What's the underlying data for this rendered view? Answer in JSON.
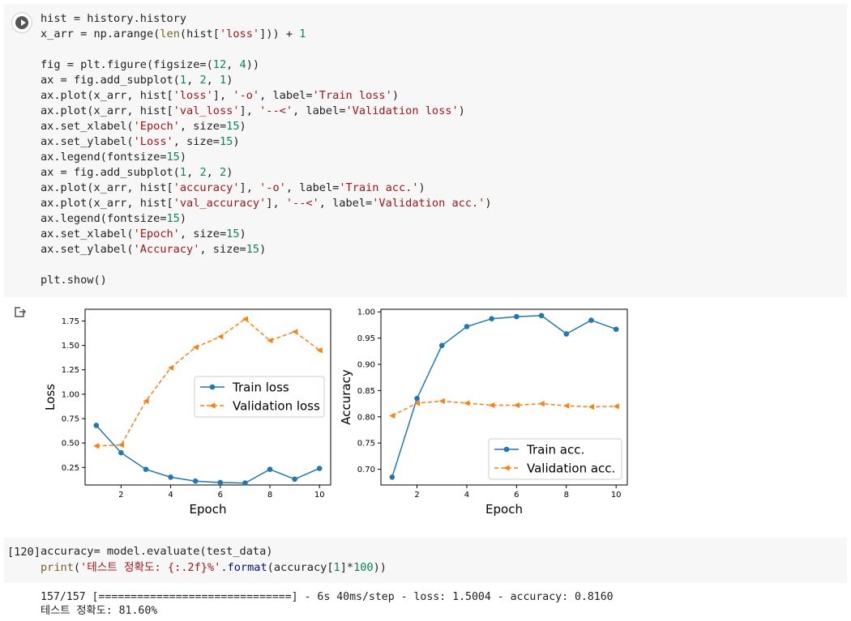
{
  "cell1": {
    "code_lines": [
      [
        {
          "t": "hist = history.history"
        }
      ],
      [
        {
          "t": "x_arr = np.arange("
        },
        {
          "t": "len",
          "c": "blt"
        },
        {
          "t": "(hist["
        },
        {
          "t": "'loss'",
          "c": "str"
        },
        {
          "t": "])) + "
        },
        {
          "t": "1",
          "c": "num"
        }
      ],
      [],
      [
        {
          "t": "fig = plt.figure(figsize=("
        },
        {
          "t": "12",
          "c": "num"
        },
        {
          "t": ", "
        },
        {
          "t": "4",
          "c": "num"
        },
        {
          "t": "))"
        }
      ],
      [
        {
          "t": "ax = fig.add_subplot("
        },
        {
          "t": "1",
          "c": "num"
        },
        {
          "t": ", "
        },
        {
          "t": "2",
          "c": "num"
        },
        {
          "t": ", "
        },
        {
          "t": "1",
          "c": "num"
        },
        {
          "t": ")"
        }
      ],
      [
        {
          "t": "ax.plot(x_arr, hist["
        },
        {
          "t": "'loss'",
          "c": "str"
        },
        {
          "t": "], "
        },
        {
          "t": "'-o'",
          "c": "str"
        },
        {
          "t": ", label="
        },
        {
          "t": "'Train loss'",
          "c": "str"
        },
        {
          "t": ")"
        }
      ],
      [
        {
          "t": "ax.plot(x_arr, hist["
        },
        {
          "t": "'val_loss'",
          "c": "str"
        },
        {
          "t": "], "
        },
        {
          "t": "'--<'",
          "c": "str"
        },
        {
          "t": ", label="
        },
        {
          "t": "'Validation loss'",
          "c": "str"
        },
        {
          "t": ")"
        }
      ],
      [
        {
          "t": "ax.set_xlabel("
        },
        {
          "t": "'Epoch'",
          "c": "str"
        },
        {
          "t": ", size="
        },
        {
          "t": "15",
          "c": "num"
        },
        {
          "t": ")"
        }
      ],
      [
        {
          "t": "ax.set_ylabel("
        },
        {
          "t": "'Loss'",
          "c": "str"
        },
        {
          "t": ", size="
        },
        {
          "t": "15",
          "c": "num"
        },
        {
          "t": ")"
        }
      ],
      [
        {
          "t": "ax.legend(fontsize="
        },
        {
          "t": "15",
          "c": "num"
        },
        {
          "t": ")"
        }
      ],
      [
        {
          "t": "ax = fig.add_subplot("
        },
        {
          "t": "1",
          "c": "num"
        },
        {
          "t": ", "
        },
        {
          "t": "2",
          "c": "num"
        },
        {
          "t": ", "
        },
        {
          "t": "2",
          "c": "num"
        },
        {
          "t": ")"
        }
      ],
      [
        {
          "t": "ax.plot(x_arr, hist["
        },
        {
          "t": "'accuracy'",
          "c": "str"
        },
        {
          "t": "], "
        },
        {
          "t": "'-o'",
          "c": "str"
        },
        {
          "t": ", label="
        },
        {
          "t": "'Train acc.'",
          "c": "str"
        },
        {
          "t": ")"
        }
      ],
      [
        {
          "t": "ax.plot(x_arr, hist["
        },
        {
          "t": "'val_accuracy'",
          "c": "str"
        },
        {
          "t": "], "
        },
        {
          "t": "'--<'",
          "c": "str"
        },
        {
          "t": ", label="
        },
        {
          "t": "'Validation acc.'",
          "c": "str"
        },
        {
          "t": ")"
        }
      ],
      [
        {
          "t": "ax.legend(fontsize="
        },
        {
          "t": "15",
          "c": "num"
        },
        {
          "t": ")"
        }
      ],
      [
        {
          "t": "ax.set_xlabel("
        },
        {
          "t": "'Epoch'",
          "c": "str"
        },
        {
          "t": ", size="
        },
        {
          "t": "15",
          "c": "num"
        },
        {
          "t": ")"
        }
      ],
      [
        {
          "t": "ax.set_ylabel("
        },
        {
          "t": "'Accuracy'",
          "c": "str"
        },
        {
          "t": ", size="
        },
        {
          "t": "15",
          "c": "num"
        },
        {
          "t": ")"
        }
      ],
      [],
      [
        {
          "t": "plt.show()"
        }
      ]
    ]
  },
  "cell2": {
    "execution_count": "[120]",
    "code_lines": [
      [
        {
          "t": "accuracy= model.evaluate(test_data)"
        }
      ],
      [
        {
          "t": "print",
          "c": "blt"
        },
        {
          "t": "("
        },
        {
          "t": "'테스트 정확도: {:.2f}%'",
          "c": "str"
        },
        {
          "t": "."
        },
        {
          "t": "format",
          "c": "fmt"
        },
        {
          "t": "(accuracy["
        },
        {
          "t": "1",
          "c": "num"
        },
        {
          "t": "]*"
        },
        {
          "t": "100",
          "c": "num"
        },
        {
          "t": "))"
        }
      ]
    ],
    "output_lines": [
      "157/157 [==============================] - 6s 40ms/step - loss: 1.5004 - accuracy: 0.8160",
      "테스트 정확도: 81.60%"
    ]
  },
  "icons": {
    "run": "play-circle-icon",
    "output": "output-redirect-icon"
  },
  "colors": {
    "series_train": "#1f77b4",
    "series_validation": "#ff7f0e",
    "cell_bg": "#f7f7f7",
    "string": "#a31515",
    "number": "#098658"
  },
  "chart_data": [
    {
      "type": "line",
      "xlabel": "Epoch",
      "ylabel": "Loss",
      "x": [
        1,
        2,
        3,
        4,
        5,
        6,
        7,
        8,
        9,
        10
      ],
      "xlim": [
        0.55,
        10.45
      ],
      "ylim": [
        0.07,
        1.87
      ],
      "xticks": [
        2,
        4,
        6,
        8,
        10
      ],
      "xtick_labels": [
        "2",
        "4",
        "6",
        "8",
        "10"
      ],
      "yticks": [
        0.25,
        0.5,
        0.75,
        1.0,
        1.25,
        1.5,
        1.75
      ],
      "ytick_labels": [
        "0.25",
        "0.50",
        "0.75",
        "1.00",
        "1.25",
        "1.50",
        "1.75"
      ],
      "legend_position": "center-right",
      "series": [
        {
          "name": "Train loss",
          "style": "solid-circle",
          "color": "#1f77b4",
          "values": [
            0.68,
            0.4,
            0.23,
            0.15,
            0.11,
            0.095,
            0.09,
            0.23,
            0.13,
            0.24
          ]
        },
        {
          "name": "Validation loss",
          "style": "dashed-triangle-left",
          "color": "#ff7f0e",
          "values": [
            0.47,
            0.48,
            0.93,
            1.27,
            1.48,
            1.59,
            1.77,
            1.55,
            1.64,
            1.45
          ]
        }
      ]
    },
    {
      "type": "line",
      "xlabel": "Epoch",
      "ylabel": "Accuracy",
      "x": [
        1,
        2,
        3,
        4,
        5,
        6,
        7,
        8,
        9,
        10
      ],
      "xlim": [
        0.55,
        10.45
      ],
      "ylim": [
        0.67,
        1.005
      ],
      "xticks": [
        2,
        4,
        6,
        8,
        10
      ],
      "xtick_labels": [
        "2",
        "4",
        "6",
        "8",
        "10"
      ],
      "yticks": [
        0.7,
        0.75,
        0.8,
        0.85,
        0.9,
        0.95,
        1.0
      ],
      "ytick_labels": [
        "0.70",
        "0.75",
        "0.80",
        "0.85",
        "0.90",
        "0.95",
        "1.00"
      ],
      "legend_position": "lower-right",
      "series": [
        {
          "name": "Train acc.",
          "style": "solid-circle",
          "color": "#1f77b4",
          "values": [
            0.685,
            0.835,
            0.936,
            0.972,
            0.987,
            0.991,
            0.993,
            0.958,
            0.984,
            0.967
          ]
        },
        {
          "name": "Validation acc.",
          "style": "dashed-triangle-left",
          "color": "#ff7f0e",
          "values": [
            0.802,
            0.826,
            0.83,
            0.826,
            0.822,
            0.822,
            0.825,
            0.821,
            0.819,
            0.82
          ]
        }
      ]
    }
  ]
}
